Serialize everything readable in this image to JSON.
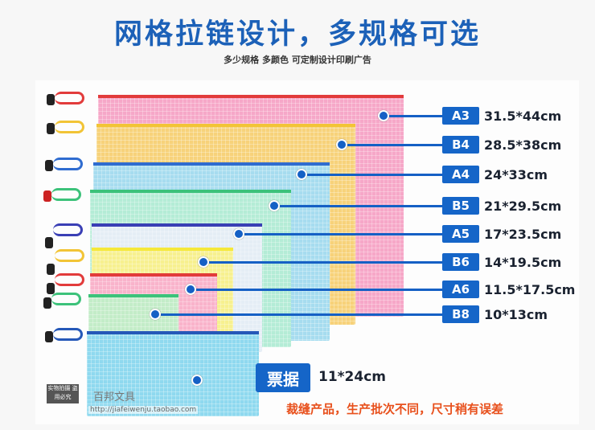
{
  "title": "网格拉链设计，多规格可选",
  "subtitle": "多少规格  多颜色  可定制设计印刷广告",
  "sizes": [
    {
      "badge": "A3",
      "dim": "31.5*44cm",
      "color": "#f6a7c8"
    },
    {
      "badge": "B4",
      "dim": "28.5*38cm",
      "color": "#f7d27a"
    },
    {
      "badge": "A4",
      "dim": "24*33cm",
      "color": "#a6dcef"
    },
    {
      "badge": "B5",
      "dim": "21*29.5cm",
      "color": "#b4ecd6"
    },
    {
      "badge": "A5",
      "dim": "17*23.5cm",
      "color": "#eef3f8"
    },
    {
      "badge": "B6",
      "dim": "14*19.5cm",
      "color": "#f7f08f"
    },
    {
      "badge": "A6",
      "dim": "11.5*17.5cm",
      "color": "#f9b3cb"
    },
    {
      "badge": "B8",
      "dim": "10*13cm",
      "color": "#c3ecc8"
    }
  ],
  "ticket": {
    "badge": "票据",
    "dim": "11*24cm",
    "color": "#8fd9ef"
  },
  "note": "裁缝产品，生产批次不同，尺寸稍有误差",
  "watermark": {
    "stamp": "实物拍摄 盗用必究",
    "shop": "百邦文具",
    "url": "http://jiafeiwenju.taobao.com"
  }
}
